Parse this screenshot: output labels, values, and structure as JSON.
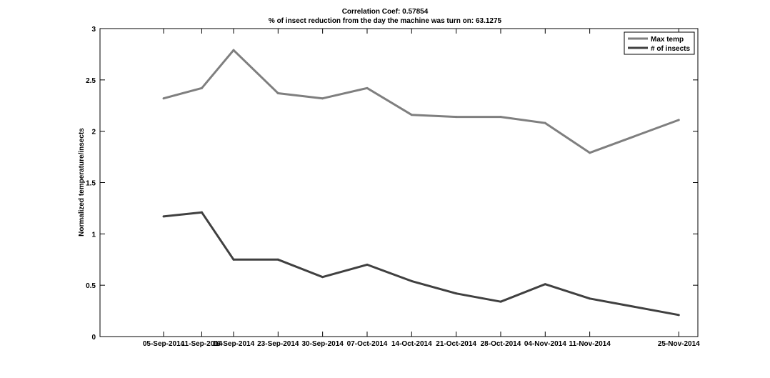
{
  "chart_data": {
    "type": "line",
    "title": "Correlation Coef: 0.57854",
    "subtitle": "% of insect reduction from the day the machine was turn on: 63.1275",
    "xlabel": "",
    "ylabel": "Normalized temperature/insects",
    "ylim": [
      0,
      3
    ],
    "yticks": [
      "0",
      "0.5",
      "1",
      "1.5",
      "2",
      "2.5",
      "3"
    ],
    "ytick_values": [
      0,
      0.5,
      1,
      1.5,
      2,
      2.5,
      3
    ],
    "x": [
      "2014-09-05",
      "2014-09-11",
      "2014-09-16",
      "2014-09-23",
      "2014-09-30",
      "2014-10-07",
      "2014-10-14",
      "2014-10-21",
      "2014-10-28",
      "2014-11-04",
      "2014-11-11",
      "2014-11-25"
    ],
    "xticks": [
      "05-Sep-2014",
      "11-Sep-2014",
      "16-Sep-2014",
      "23-Sep-2014",
      "30-Sep-2014",
      "07-Oct-2014",
      "14-Oct-2014",
      "21-Oct-2014",
      "28-Oct-2014",
      "04-Nov-2014",
      "11-Nov-2014",
      "25-Nov-2014"
    ],
    "xlim": [
      "2014-08-26",
      "2014-11-28"
    ],
    "series": [
      {
        "name": "Max temp",
        "color": "#7f7f7f",
        "values": [
          2.32,
          2.42,
          2.79,
          2.37,
          2.32,
          2.42,
          2.16,
          2.14,
          2.14,
          2.08,
          1.79,
          2.11
        ]
      },
      {
        "name": "# of insects",
        "color": "#404040",
        "values": [
          1.17,
          1.21,
          0.75,
          0.75,
          0.58,
          0.7,
          0.54,
          0.42,
          0.34,
          0.51,
          0.37,
          0.21
        ]
      }
    ],
    "grid": false,
    "legend": "top-right"
  }
}
